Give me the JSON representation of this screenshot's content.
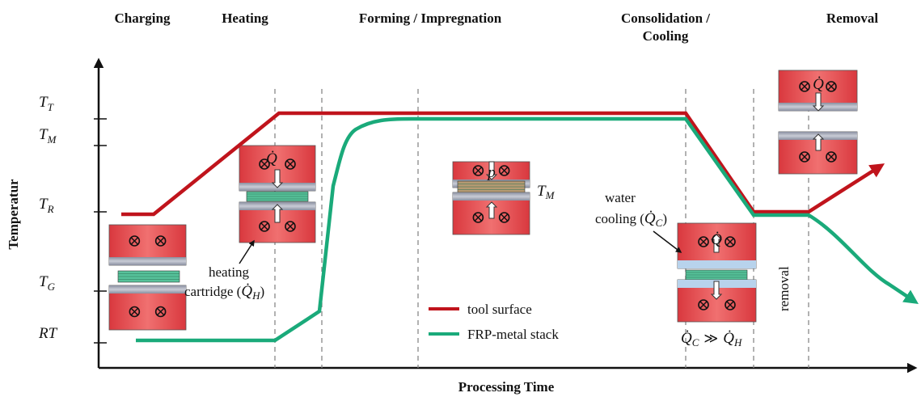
{
  "phases": [
    {
      "lines": [
        "Charging"
      ]
    },
    {
      "lines": [
        "Heating"
      ]
    },
    {
      "lines": [
        "Forming / Impregnation"
      ]
    },
    {
      "lines": [
        "Consolidation /",
        "Cooling"
      ]
    },
    {
      "lines": [
        "Removal"
      ]
    }
  ],
  "y_axis": {
    "title": "Temperatur",
    "levels": [
      {
        "symbol": "T",
        "sub": "T"
      },
      {
        "symbol": "T",
        "sub": "M"
      },
      {
        "symbol": "T",
        "sub": "R"
      },
      {
        "symbol": "T",
        "sub": "G"
      },
      {
        "symbol": "RT"
      }
    ]
  },
  "x_axis": {
    "title": "Processing Time"
  },
  "legend": [
    {
      "label": "tool surface",
      "color": "#c0141c"
    },
    {
      "label": "FRP-metal stack",
      "color": "#1aaa7a"
    }
  ],
  "annotations": {
    "heating_cartridge": {
      "line1": "heating",
      "prefix": "cartridge (",
      "symbol": "Q̇",
      "sub": "H",
      "suffix": ")"
    },
    "water_cooling": {
      "line1": "water",
      "prefix": "cooling (",
      "symbol": "Q̇",
      "sub": "C",
      "suffix": ")"
    },
    "removal": "removal",
    "heat_relation": {
      "symbol1": "Q̇",
      "sub1": "C",
      "relation": "≫",
      "symbol2": "Q̇",
      "sub2": "H"
    },
    "heating_flux": "Q̇",
    "pressure": "p",
    "melt_temp": {
      "symbol": "T",
      "sub": "M"
    },
    "cooling_flux": "Q̇",
    "removal_flux": "Q̇"
  }
}
